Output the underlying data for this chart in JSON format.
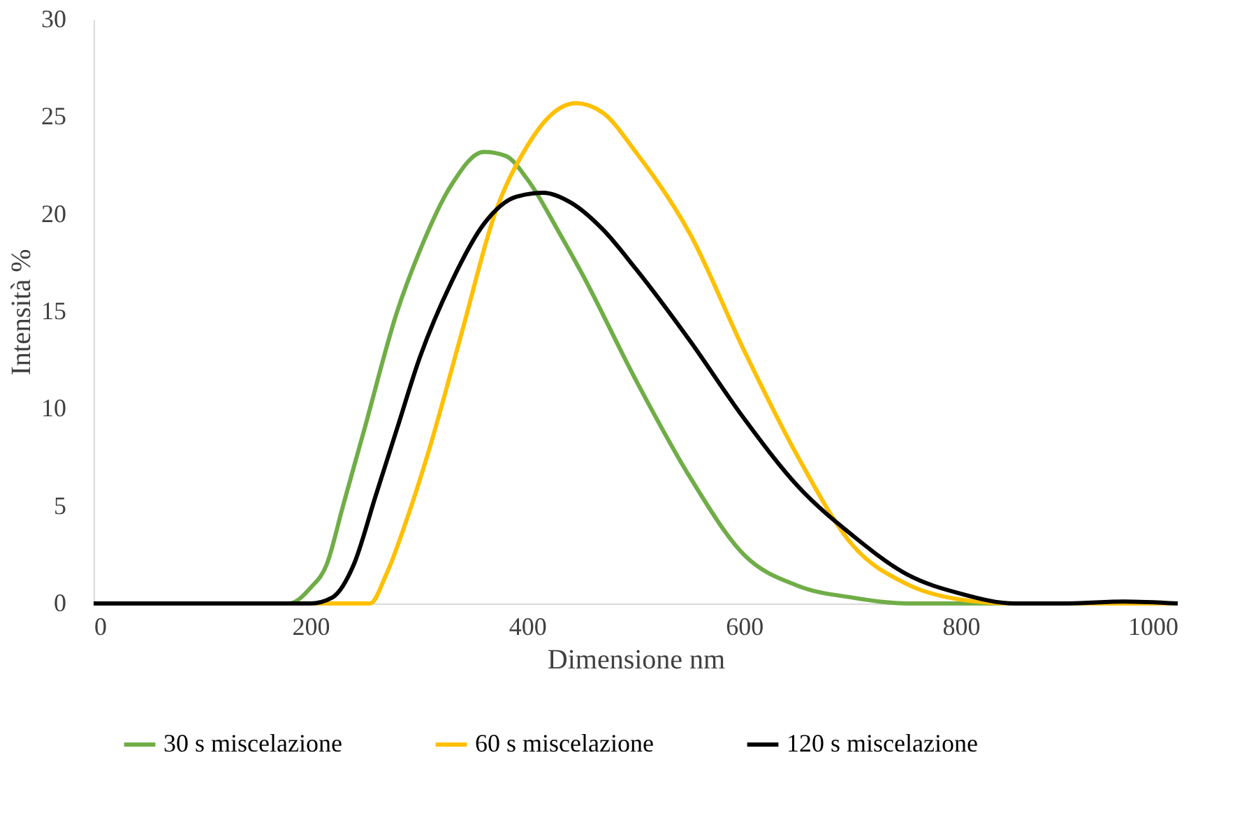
{
  "chart_data": {
    "type": "line",
    "xlabel": "Dimensione nm",
    "ylabel": "Intensità %",
    "xlim": [
      0,
      1000
    ],
    "ylim": [
      0,
      30
    ],
    "xticks": [
      0,
      200,
      400,
      600,
      800,
      1000
    ],
    "yticks": [
      0,
      5,
      10,
      15,
      20,
      25,
      30
    ],
    "grid": false,
    "legend": "bottom",
    "line_style": "solid",
    "marker": "none",
    "series": [
      {
        "name": "30 s miscelazione",
        "color": "#70ad47",
        "x": [
          0,
          100,
          180,
          200,
          215,
          230,
          250,
          280,
          300,
          330,
          360,
          380,
          400,
          430,
          450,
          500,
          550,
          600,
          650,
          700,
          750,
          800,
          900,
          1000
        ],
        "values": [
          0,
          0,
          0,
          0.8,
          2,
          5,
          9,
          15,
          18,
          21.5,
          23.2,
          23,
          21.8,
          19,
          17,
          11.5,
          6.5,
          2.5,
          0.9,
          0.3,
          0,
          0,
          0,
          0
        ]
      },
      {
        "name": "60 s miscelazione",
        "color": "#ffc000",
        "x": [
          0,
          100,
          200,
          220,
          240,
          255,
          270,
          290,
          310,
          340,
          370,
          400,
          420,
          445,
          470,
          500,
          550,
          600,
          650,
          700,
          750,
          800,
          850,
          900,
          1000
        ],
        "values": [
          0,
          0,
          0,
          0,
          0,
          0,
          1.5,
          4.5,
          8,
          14,
          20,
          23.5,
          25,
          25.7,
          25.2,
          23.2,
          19,
          13,
          7.5,
          3,
          1,
          0.2,
          0,
          0,
          0
        ]
      },
      {
        "name": "120 s miscelazione",
        "color": "#000000",
        "x": [
          0,
          100,
          200,
          220,
          240,
          260,
          280,
          300,
          330,
          360,
          390,
          415,
          440,
          470,
          500,
          550,
          600,
          650,
          700,
          750,
          800,
          850,
          900,
          950,
          1000
        ],
        "values": [
          0,
          0,
          0,
          0.3,
          2,
          5.5,
          9,
          12.5,
          16.5,
          19.5,
          20.9,
          21.1,
          20.6,
          19.2,
          17.2,
          13.5,
          9.5,
          6,
          3.5,
          1.5,
          0.5,
          0,
          0,
          0.1,
          0
        ]
      }
    ]
  }
}
